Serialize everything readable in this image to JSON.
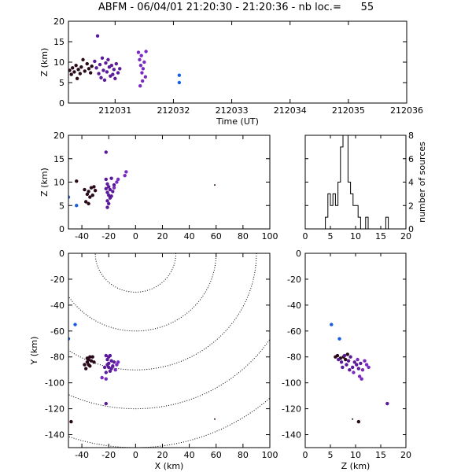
{
  "title": "ABFM - 06/04/01 21:20:30 - 21:20:36 - nb loc.=      55",
  "colors": {
    "dark": "#2a0a1a",
    "purple": "#5b1a9a",
    "violet": "#7a2ac0",
    "blue": "#1a5ee0",
    "axis": "#000000"
  },
  "chart_data": [
    {
      "id": "time_height",
      "type": "scatter",
      "xlabel": "Time (UT)",
      "ylabel": "Z (km)",
      "xlim": [
        212030.2,
        212036.0
      ],
      "ylim": [
        0,
        20
      ],
      "xticks": [
        212031,
        212032,
        212033,
        212034,
        212035,
        212036
      ],
      "xtick_labels": [
        "212031",
        "212032",
        "212033",
        "212034",
        "212035",
        "212036"
      ],
      "yticks": [
        0,
        5,
        10,
        15,
        20
      ],
      "ytick_labels": [
        "0",
        "5",
        "10",
        "15",
        "20"
      ],
      "points": [
        {
          "x": 212030.22,
          "y": 8.0,
          "c": "dark"
        },
        {
          "x": 212030.25,
          "y": 7.0,
          "c": "dark"
        },
        {
          "x": 212030.27,
          "y": 8.6,
          "c": "dark"
        },
        {
          "x": 212030.3,
          "y": 7.6,
          "c": "dark"
        },
        {
          "x": 212030.33,
          "y": 9.2,
          "c": "dark"
        },
        {
          "x": 212030.35,
          "y": 6.0,
          "c": "dark"
        },
        {
          "x": 212030.37,
          "y": 8.2,
          "c": "dark"
        },
        {
          "x": 212030.4,
          "y": 7.2,
          "c": "dark"
        },
        {
          "x": 212030.42,
          "y": 8.8,
          "c": "dark"
        },
        {
          "x": 212030.45,
          "y": 10.6,
          "c": "dark"
        },
        {
          "x": 212030.48,
          "y": 7.8,
          "c": "dark"
        },
        {
          "x": 212030.52,
          "y": 9.6,
          "c": "dark"
        },
        {
          "x": 212030.55,
          "y": 8.4,
          "c": "dark"
        },
        {
          "x": 212030.58,
          "y": 7.4,
          "c": "dark"
        },
        {
          "x": 212030.6,
          "y": 9.0,
          "c": "dark"
        },
        {
          "x": 212030.65,
          "y": 10.2,
          "c": "purple"
        },
        {
          "x": 212030.68,
          "y": 8.6,
          "c": "purple"
        },
        {
          "x": 212030.7,
          "y": 16.4,
          "c": "purple"
        },
        {
          "x": 212030.72,
          "y": 7.2,
          "c": "purple"
        },
        {
          "x": 212030.74,
          "y": 9.4,
          "c": "purple"
        },
        {
          "x": 212030.76,
          "y": 6.2,
          "c": "purple"
        },
        {
          "x": 212030.78,
          "y": 11.0,
          "c": "purple"
        },
        {
          "x": 212030.8,
          "y": 8.0,
          "c": "purple"
        },
        {
          "x": 212030.82,
          "y": 5.6,
          "c": "purple"
        },
        {
          "x": 212030.84,
          "y": 9.8,
          "c": "purple"
        },
        {
          "x": 212030.86,
          "y": 7.6,
          "c": "purple"
        },
        {
          "x": 212030.88,
          "y": 10.6,
          "c": "purple"
        },
        {
          "x": 212030.9,
          "y": 8.8,
          "c": "purple"
        },
        {
          "x": 212030.92,
          "y": 6.6,
          "c": "purple"
        },
        {
          "x": 212030.94,
          "y": 9.2,
          "c": "purple"
        },
        {
          "x": 212030.96,
          "y": 7.0,
          "c": "purple"
        },
        {
          "x": 212030.98,
          "y": 8.2,
          "c": "purple"
        },
        {
          "x": 212031.0,
          "y": 6.0,
          "c": "purple"
        },
        {
          "x": 212031.02,
          "y": 9.6,
          "c": "purple"
        },
        {
          "x": 212031.05,
          "y": 7.4,
          "c": "purple"
        },
        {
          "x": 212031.08,
          "y": 8.4,
          "c": "purple"
        },
        {
          "x": 212031.4,
          "y": 12.4,
          "c": "violet"
        },
        {
          "x": 212031.42,
          "y": 10.6,
          "c": "violet"
        },
        {
          "x": 212031.43,
          "y": 4.2,
          "c": "violet"
        },
        {
          "x": 212031.44,
          "y": 9.2,
          "c": "violet"
        },
        {
          "x": 212031.45,
          "y": 11.6,
          "c": "violet"
        },
        {
          "x": 212031.46,
          "y": 7.4,
          "c": "violet"
        },
        {
          "x": 212031.47,
          "y": 5.4,
          "c": "violet"
        },
        {
          "x": 212031.48,
          "y": 8.4,
          "c": "violet"
        },
        {
          "x": 212031.5,
          "y": 10.0,
          "c": "violet"
        },
        {
          "x": 212031.52,
          "y": 6.4,
          "c": "violet"
        },
        {
          "x": 212031.53,
          "y": 12.6,
          "c": "violet"
        },
        {
          "x": 212032.1,
          "y": 6.8,
          "c": "blue"
        },
        {
          "x": 212032.1,
          "y": 5.0,
          "c": "blue"
        }
      ]
    },
    {
      "id": "xz",
      "type": "scatter",
      "xlabel": "",
      "ylabel": "Z (km)",
      "xlim": [
        -50,
        100
      ],
      "ylim": [
        0,
        20
      ],
      "xticks": [
        -40,
        -20,
        0,
        20,
        40,
        60,
        80,
        100
      ],
      "xtick_labels": [
        "-40",
        "-20",
        "0",
        "20",
        "40",
        "60",
        "80",
        "100"
      ],
      "yticks": [
        0,
        5,
        10,
        15,
        20
      ],
      "ytick_labels": [
        "0",
        "5",
        "10",
        "15",
        "20"
      ],
      "points": [
        {
          "x": -44,
          "y": 10.2,
          "c": "dark"
        },
        {
          "x": -38,
          "y": 8.4,
          "c": "dark"
        },
        {
          "x": -36,
          "y": 7.4,
          "c": "dark"
        },
        {
          "x": -35,
          "y": 8.0,
          "c": "dark"
        },
        {
          "x": -34,
          "y": 6.8,
          "c": "dark"
        },
        {
          "x": -33,
          "y": 8.8,
          "c": "dark"
        },
        {
          "x": -32,
          "y": 7.2,
          "c": "dark"
        },
        {
          "x": -31,
          "y": 9.0,
          "c": "dark"
        },
        {
          "x": -37,
          "y": 5.8,
          "c": "dark"
        },
        {
          "x": -35,
          "y": 5.4,
          "c": "dark"
        },
        {
          "x": -30,
          "y": 8.2,
          "c": "dark"
        },
        {
          "x": -22,
          "y": 16.4,
          "c": "purple"
        },
        {
          "x": -22,
          "y": 10.6,
          "c": "purple"
        },
        {
          "x": -21,
          "y": 9.6,
          "c": "purple"
        },
        {
          "x": -20,
          "y": 9.0,
          "c": "purple"
        },
        {
          "x": -19,
          "y": 8.4,
          "c": "purple"
        },
        {
          "x": -21,
          "y": 7.8,
          "c": "purple"
        },
        {
          "x": -20,
          "y": 7.2,
          "c": "purple"
        },
        {
          "x": -19,
          "y": 6.6,
          "c": "purple"
        },
        {
          "x": -21,
          "y": 6.0,
          "c": "purple"
        },
        {
          "x": -20,
          "y": 5.4,
          "c": "purple"
        },
        {
          "x": -21,
          "y": 4.6,
          "c": "purple"
        },
        {
          "x": -18,
          "y": 10.8,
          "c": "purple"
        },
        {
          "x": -17,
          "y": 8.0,
          "c": "purple"
        },
        {
          "x": -16,
          "y": 9.4,
          "c": "purple"
        },
        {
          "x": -22,
          "y": 8.6,
          "c": "purple"
        },
        {
          "x": -18,
          "y": 7.0,
          "c": "purple"
        },
        {
          "x": -14,
          "y": 10.0,
          "c": "violet"
        },
        {
          "x": -13,
          "y": 10.6,
          "c": "violet"
        },
        {
          "x": -8,
          "y": 11.4,
          "c": "violet"
        },
        {
          "x": -7,
          "y": 12.2,
          "c": "violet"
        },
        {
          "x": -16,
          "y": 8.8,
          "c": "violet"
        },
        {
          "x": -50,
          "y": 6.8,
          "c": "blue"
        },
        {
          "x": -44,
          "y": 5.0,
          "c": "blue"
        },
        {
          "x": 59,
          "y": 9.4,
          "c": "dark",
          "s": "tiny"
        }
      ]
    },
    {
      "id": "histogram",
      "type": "bar",
      "xlabel": "",
      "ylabel": "number of sources",
      "xlim": [
        0,
        20
      ],
      "ylim": [
        0,
        8
      ],
      "xticks": [
        0,
        5,
        10,
        15,
        20
      ],
      "xtick_labels": [
        "0",
        "5",
        "10",
        "15",
        "20"
      ],
      "yticks": [
        0,
        2,
        4,
        6,
        8
      ],
      "ytick_labels": [
        "0",
        "2",
        "4",
        "6",
        "8"
      ],
      "bin_width": 0.5,
      "bins": [
        {
          "x": 4.0,
          "v": 1
        },
        {
          "x": 4.5,
          "v": 3
        },
        {
          "x": 5.0,
          "v": 2
        },
        {
          "x": 5.5,
          "v": 3
        },
        {
          "x": 6.0,
          "v": 2
        },
        {
          "x": 6.5,
          "v": 4
        },
        {
          "x": 7.0,
          "v": 7
        },
        {
          "x": 7.5,
          "v": 8
        },
        {
          "x": 8.0,
          "v": 8
        },
        {
          "x": 8.5,
          "v": 4
        },
        {
          "x": 9.0,
          "v": 3
        },
        {
          "x": 9.5,
          "v": 2
        },
        {
          "x": 10.0,
          "v": 2
        },
        {
          "x": 10.5,
          "v": 1
        },
        {
          "x": 11.0,
          "v": 0
        },
        {
          "x": 11.5,
          "v": 0
        },
        {
          "x": 12.0,
          "v": 1
        },
        {
          "x": 12.5,
          "v": 0
        },
        {
          "x": 13.0,
          "v": 0
        },
        {
          "x": 13.5,
          "v": 0
        },
        {
          "x": 14.0,
          "v": 0
        },
        {
          "x": 14.5,
          "v": 0
        },
        {
          "x": 15.0,
          "v": 0
        },
        {
          "x": 15.5,
          "v": 0
        },
        {
          "x": 16.0,
          "v": 1
        }
      ]
    },
    {
      "id": "xy",
      "type": "scatter",
      "xlabel": "X (km)",
      "ylabel": "Y (km)",
      "xlim": [
        -50,
        100
      ],
      "ylim": [
        -150,
        0
      ],
      "xticks": [
        -40,
        -20,
        0,
        20,
        40,
        60,
        80,
        100
      ],
      "xtick_labels": [
        "-40",
        "-20",
        "0",
        "20",
        "40",
        "60",
        "80",
        "100"
      ],
      "yticks": [
        -140,
        -120,
        -100,
        -80,
        -60,
        -40,
        -20,
        0
      ],
      "ytick_labels": [
        "-140",
        "-120",
        "-100",
        "-80",
        "-60",
        "-40",
        "-20",
        "0"
      ],
      "range_rings": {
        "cx": 0,
        "cy": 0,
        "radii": [
          30,
          60,
          90,
          120,
          150
        ]
      },
      "points": [
        {
          "x": -45,
          "y": -55,
          "c": "blue"
        },
        {
          "x": -50,
          "y": -66,
          "c": "blue"
        },
        {
          "x": -38,
          "y": -86,
          "c": "dark"
        },
        {
          "x": -36,
          "y": -84,
          "c": "dark"
        },
        {
          "x": -35,
          "y": -82,
          "c": "dark"
        },
        {
          "x": -34,
          "y": -87,
          "c": "dark"
        },
        {
          "x": -33,
          "y": -83,
          "c": "dark"
        },
        {
          "x": -32,
          "y": -80,
          "c": "dark"
        },
        {
          "x": -37,
          "y": -89,
          "c": "dark"
        },
        {
          "x": -35,
          "y": -86,
          "c": "dark"
        },
        {
          "x": -34,
          "y": -80,
          "c": "dark"
        },
        {
          "x": -31,
          "y": -84,
          "c": "dark"
        },
        {
          "x": -36,
          "y": -81,
          "c": "dark"
        },
        {
          "x": -22,
          "y": -79,
          "c": "purple"
        },
        {
          "x": -21,
          "y": -82,
          "c": "purple"
        },
        {
          "x": -20,
          "y": -85,
          "c": "purple"
        },
        {
          "x": -19,
          "y": -79,
          "c": "purple"
        },
        {
          "x": -20,
          "y": -88,
          "c": "purple"
        },
        {
          "x": -18,
          "y": -83,
          "c": "purple"
        },
        {
          "x": -19,
          "y": -91,
          "c": "purple"
        },
        {
          "x": -21,
          "y": -86,
          "c": "purple"
        },
        {
          "x": -22,
          "y": -92,
          "c": "purple"
        },
        {
          "x": -17,
          "y": -87,
          "c": "purple"
        },
        {
          "x": -16,
          "y": -84,
          "c": "purple"
        },
        {
          "x": -20,
          "y": -80,
          "c": "purple"
        },
        {
          "x": -23,
          "y": -88,
          "c": "purple"
        },
        {
          "x": -18,
          "y": -89,
          "c": "purple"
        },
        {
          "x": -14,
          "y": -86,
          "c": "violet"
        },
        {
          "x": -13,
          "y": -84,
          "c": "violet"
        },
        {
          "x": -25,
          "y": -96,
          "c": "violet"
        },
        {
          "x": -22,
          "y": -97,
          "c": "violet"
        },
        {
          "x": -15,
          "y": -90,
          "c": "violet"
        },
        {
          "x": -22,
          "y": -116,
          "c": "purple"
        },
        {
          "x": -48,
          "y": -130,
          "c": "dark"
        },
        {
          "x": 59,
          "y": -128,
          "c": "dark",
          "s": "tiny"
        }
      ]
    },
    {
      "id": "zy",
      "type": "scatter",
      "xlabel": "Z (km)",
      "ylabel": "",
      "xlim": [
        0,
        20
      ],
      "ylim": [
        -150,
        0
      ],
      "xticks": [
        0,
        5,
        10,
        15,
        20
      ],
      "xtick_labels": [
        "0",
        "5",
        "10",
        "15",
        "20"
      ],
      "yticks": [
        -140,
        -120,
        -100,
        -80,
        -60,
        -40,
        -20,
        0
      ],
      "ytick_labels": [
        "-140",
        "-120",
        "-100",
        "-80",
        "-60",
        "-40",
        "-20",
        "0"
      ],
      "points": [
        {
          "x": 5.2,
          "y": -55,
          "c": "blue"
        },
        {
          "x": 6.8,
          "y": -66,
          "c": "blue"
        },
        {
          "x": 6.0,
          "y": -80,
          "c": "dark"
        },
        {
          "x": 6.4,
          "y": -79,
          "c": "dark"
        },
        {
          "x": 7.0,
          "y": -81,
          "c": "dark"
        },
        {
          "x": 7.6,
          "y": -80,
          "c": "dark"
        },
        {
          "x": 8.0,
          "y": -82,
          "c": "dark"
        },
        {
          "x": 8.4,
          "y": -78,
          "c": "dark"
        },
        {
          "x": 6.6,
          "y": -82,
          "c": "purple"
        },
        {
          "x": 7.2,
          "y": -84,
          "c": "purple"
        },
        {
          "x": 7.8,
          "y": -79,
          "c": "purple"
        },
        {
          "x": 8.2,
          "y": -86,
          "c": "purple"
        },
        {
          "x": 8.6,
          "y": -83,
          "c": "purple"
        },
        {
          "x": 9.0,
          "y": -80,
          "c": "purple"
        },
        {
          "x": 9.4,
          "y": -88,
          "c": "purple"
        },
        {
          "x": 9.8,
          "y": -84,
          "c": "purple"
        },
        {
          "x": 10.2,
          "y": -86,
          "c": "purple"
        },
        {
          "x": 10.6,
          "y": -89,
          "c": "purple"
        },
        {
          "x": 11.0,
          "y": -85,
          "c": "purple"
        },
        {
          "x": 7.4,
          "y": -88,
          "c": "purple"
        },
        {
          "x": 8.8,
          "y": -90,
          "c": "purple"
        },
        {
          "x": 9.6,
          "y": -92,
          "c": "violet"
        },
        {
          "x": 10.4,
          "y": -82,
          "c": "violet"
        },
        {
          "x": 11.4,
          "y": -90,
          "c": "violet"
        },
        {
          "x": 12.2,
          "y": -86,
          "c": "violet"
        },
        {
          "x": 12.6,
          "y": -88,
          "c": "violet"
        },
        {
          "x": 11.8,
          "y": -83,
          "c": "violet"
        },
        {
          "x": 10.8,
          "y": -95,
          "c": "violet"
        },
        {
          "x": 11.2,
          "y": -97,
          "c": "violet"
        },
        {
          "x": 16.3,
          "y": -116,
          "c": "purple"
        },
        {
          "x": 10.6,
          "y": -130,
          "c": "dark"
        },
        {
          "x": 9.4,
          "y": -128,
          "c": "dark",
          "s": "tiny"
        }
      ]
    }
  ]
}
